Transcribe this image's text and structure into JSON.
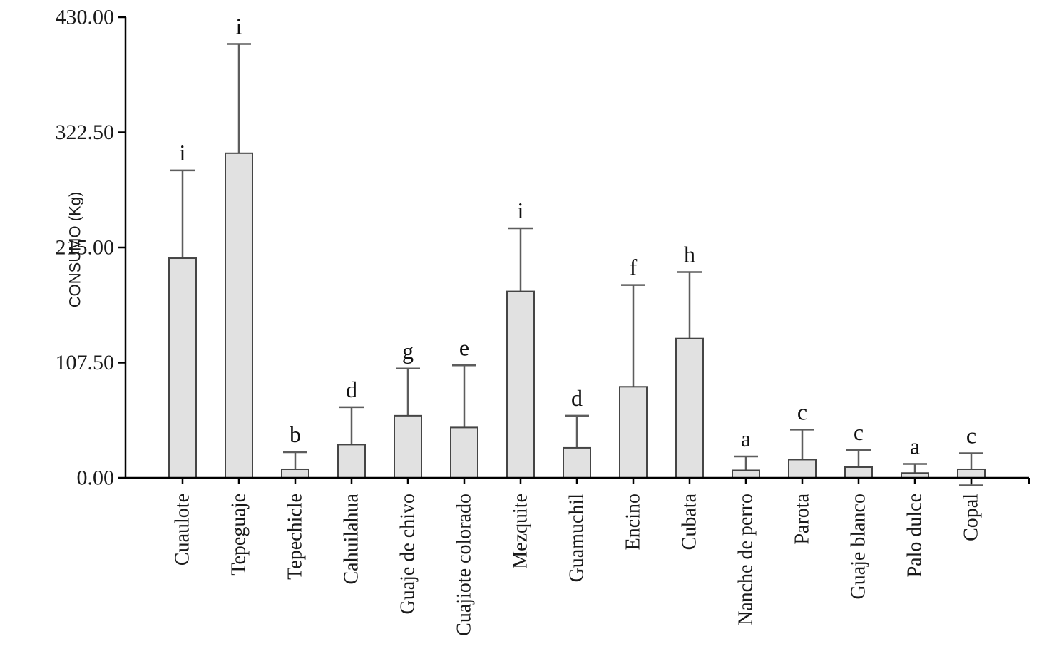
{
  "chart_data": {
    "type": "bar",
    "title": "",
    "xlabel": "",
    "ylabel": "CONSUMO (Kg)",
    "ylim": [
      0,
      430
    ],
    "grid": false,
    "legend": false,
    "yticks": [
      {
        "value": 0,
        "label": "0.00"
      },
      {
        "value": 107.5,
        "label": "107.50"
      },
      {
        "value": 215,
        "label": "215.00"
      },
      {
        "value": 322.5,
        "label": "322.50"
      },
      {
        "value": 430,
        "label": "430.00"
      }
    ],
    "categories": [
      "Cuaulote",
      "Tepeguaje",
      "Tepechicle",
      "Cahuilahua",
      "Guaje de chivo",
      "Cuajiote colorado",
      "Mezquite",
      "Guamuchil",
      "Encino",
      "Cubata",
      "Nanche de perro",
      "Parota",
      "Guaje blanco",
      "Palo dulce",
      "Copal"
    ],
    "series": [
      {
        "name": "CONSUMO (Kg)",
        "values": [
          205,
          303,
          8,
          31,
          58,
          47,
          174,
          28,
          85,
          130,
          7,
          17,
          10,
          4.5,
          8
        ]
      }
    ],
    "errors_upper": [
      82,
      102,
      16,
      35,
      44,
      58,
      59,
      30,
      95,
      62,
      13,
      28,
      16,
      8.5,
      15
    ],
    "sig_letters": [
      "i",
      "i",
      "b",
      "d",
      "g",
      "e",
      "i",
      "d",
      "f",
      "h",
      "a",
      "c",
      "c",
      "a",
      "c"
    ],
    "lower_cap_visible": [
      false,
      false,
      false,
      false,
      false,
      false,
      false,
      false,
      false,
      false,
      false,
      false,
      false,
      false,
      true
    ],
    "colors": {
      "bar_fill": "#e1e1e1",
      "bar_stroke": "#454545",
      "error_bar": "#5d5d5d",
      "axis": "#000000",
      "text": "#1a1a1a",
      "background": "#ffffff"
    }
  }
}
